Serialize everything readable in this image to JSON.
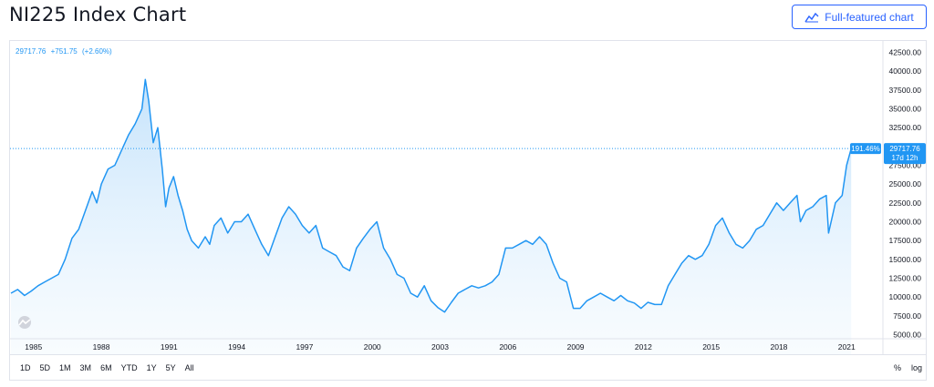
{
  "header": {
    "title": "NI225 Index Chart",
    "full_chart_label": "Full-featured chart"
  },
  "legend": {
    "last": "29717.76",
    "change": "+751.75",
    "change_pct": "(+2.60%)"
  },
  "price_badge": {
    "pct": "191.46%",
    "price": "29717.76",
    "countdown": "17d 12h"
  },
  "range_buttons": [
    "1D",
    "5D",
    "1M",
    "3M",
    "6M",
    "YTD",
    "1Y",
    "5Y",
    "All"
  ],
  "scale_buttons": [
    "%",
    "log"
  ],
  "colors": {
    "line": "#2196f3",
    "fill_top": "#bbdefb",
    "accent": "#2962ff",
    "badge": "#2196f3"
  },
  "chart_data": {
    "type": "area",
    "title": "NI225 Index Chart",
    "xlabel": "",
    "ylabel": "",
    "x_ticks": [
      "1985",
      "1988",
      "1991",
      "1994",
      "1997",
      "2000",
      "2003",
      "2006",
      "2009",
      "2012",
      "2015",
      "2018",
      "2021"
    ],
    "y_ticks": [
      "5000.00",
      "7500.00",
      "10000.00",
      "12500.00",
      "15000.00",
      "17500.00",
      "20000.00",
      "22500.00",
      "25000.00",
      "27500.00",
      "30000.00",
      "32500.00",
      "35000.00",
      "37500.00",
      "40000.00",
      "42500.00"
    ],
    "xlim": [
      1984.0,
      2022.0
    ],
    "ylim": [
      5000,
      42500
    ],
    "last_price_line": 29717.76,
    "grid": false,
    "series": [
      {
        "x": [
          1984.0,
          1984.3,
          1984.6,
          1984.9,
          1985.2,
          1985.5,
          1985.8,
          1986.1,
          1986.4,
          1986.7,
          1987.0,
          1987.3,
          1987.6,
          1987.8,
          1988.0,
          1988.3,
          1988.6,
          1988.9,
          1989.2,
          1989.5,
          1989.8,
          1989.95,
          1990.1,
          1990.3,
          1990.5,
          1990.7,
          1990.85,
          1991.0,
          1991.2,
          1991.4,
          1991.6,
          1991.8,
          1992.0,
          1992.3,
          1992.6,
          1992.8,
          1993.0,
          1993.3,
          1993.6,
          1993.9,
          1994.2,
          1994.5,
          1994.8,
          1995.1,
          1995.4,
          1995.7,
          1996.0,
          1996.3,
          1996.6,
          1996.9,
          1997.2,
          1997.5,
          1997.8,
          1998.1,
          1998.4,
          1998.7,
          1999.0,
          1999.3,
          1999.6,
          1999.9,
          2000.2,
          2000.5,
          2000.8,
          2001.1,
          2001.4,
          2001.7,
          2002.0,
          2002.3,
          2002.6,
          2002.9,
          2003.2,
          2003.5,
          2003.8,
          2004.1,
          2004.4,
          2004.7,
          2005.0,
          2005.3,
          2005.6,
          2005.9,
          2006.2,
          2006.5,
          2006.8,
          2007.1,
          2007.4,
          2007.7,
          2008.0,
          2008.3,
          2008.6,
          2008.9,
          2009.2,
          2009.5,
          2009.8,
          2010.1,
          2010.4,
          2010.7,
          2011.0,
          2011.3,
          2011.6,
          2011.9,
          2012.2,
          2012.5,
          2012.8,
          2013.1,
          2013.4,
          2013.7,
          2014.0,
          2014.3,
          2014.6,
          2014.9,
          2015.2,
          2015.5,
          2015.8,
          2016.1,
          2016.4,
          2016.7,
          2017.0,
          2017.3,
          2017.6,
          2017.9,
          2018.2,
          2018.5,
          2018.8,
          2018.95,
          2019.2,
          2019.5,
          2019.8,
          2020.1,
          2020.2,
          2020.5,
          2020.8,
          2021.0,
          2021.2
        ],
        "values": [
          10500,
          11000,
          10200,
          10800,
          11500,
          12000,
          12500,
          13000,
          15000,
          17800,
          19000,
          21500,
          24000,
          22500,
          25000,
          27000,
          27500,
          29500,
          31500,
          33000,
          35000,
          38900,
          36000,
          30500,
          32500,
          27000,
          22000,
          24500,
          26000,
          23500,
          21500,
          19000,
          17500,
          16500,
          18000,
          17000,
          19500,
          20500,
          18500,
          20000,
          20000,
          21000,
          19000,
          17000,
          15500,
          18000,
          20500,
          22000,
          21000,
          19500,
          18500,
          19500,
          16500,
          16000,
          15500,
          14000,
          13500,
          16500,
          17800,
          19000,
          20000,
          16500,
          15000,
          13000,
          12500,
          10500,
          10000,
          11500,
          9500,
          8600,
          8000,
          9300,
          10500,
          11000,
          11500,
          11200,
          11500,
          12000,
          13000,
          16500,
          16500,
          17000,
          17500,
          17000,
          18000,
          17000,
          14500,
          12500,
          12000,
          8500,
          8500,
          9500,
          10000,
          10500,
          10000,
          9500,
          10200,
          9500,
          9200,
          8500,
          9300,
          9000,
          9000,
          11500,
          13000,
          14500,
          15500,
          15000,
          15500,
          17000,
          19500,
          20500,
          18500,
          17000,
          16500,
          17500,
          19000,
          19500,
          21000,
          22500,
          21500,
          22500,
          23500,
          20000,
          21500,
          22000,
          23000,
          23500,
          18500,
          22500,
          23500,
          27500,
          29717.76
        ]
      }
    ]
  }
}
